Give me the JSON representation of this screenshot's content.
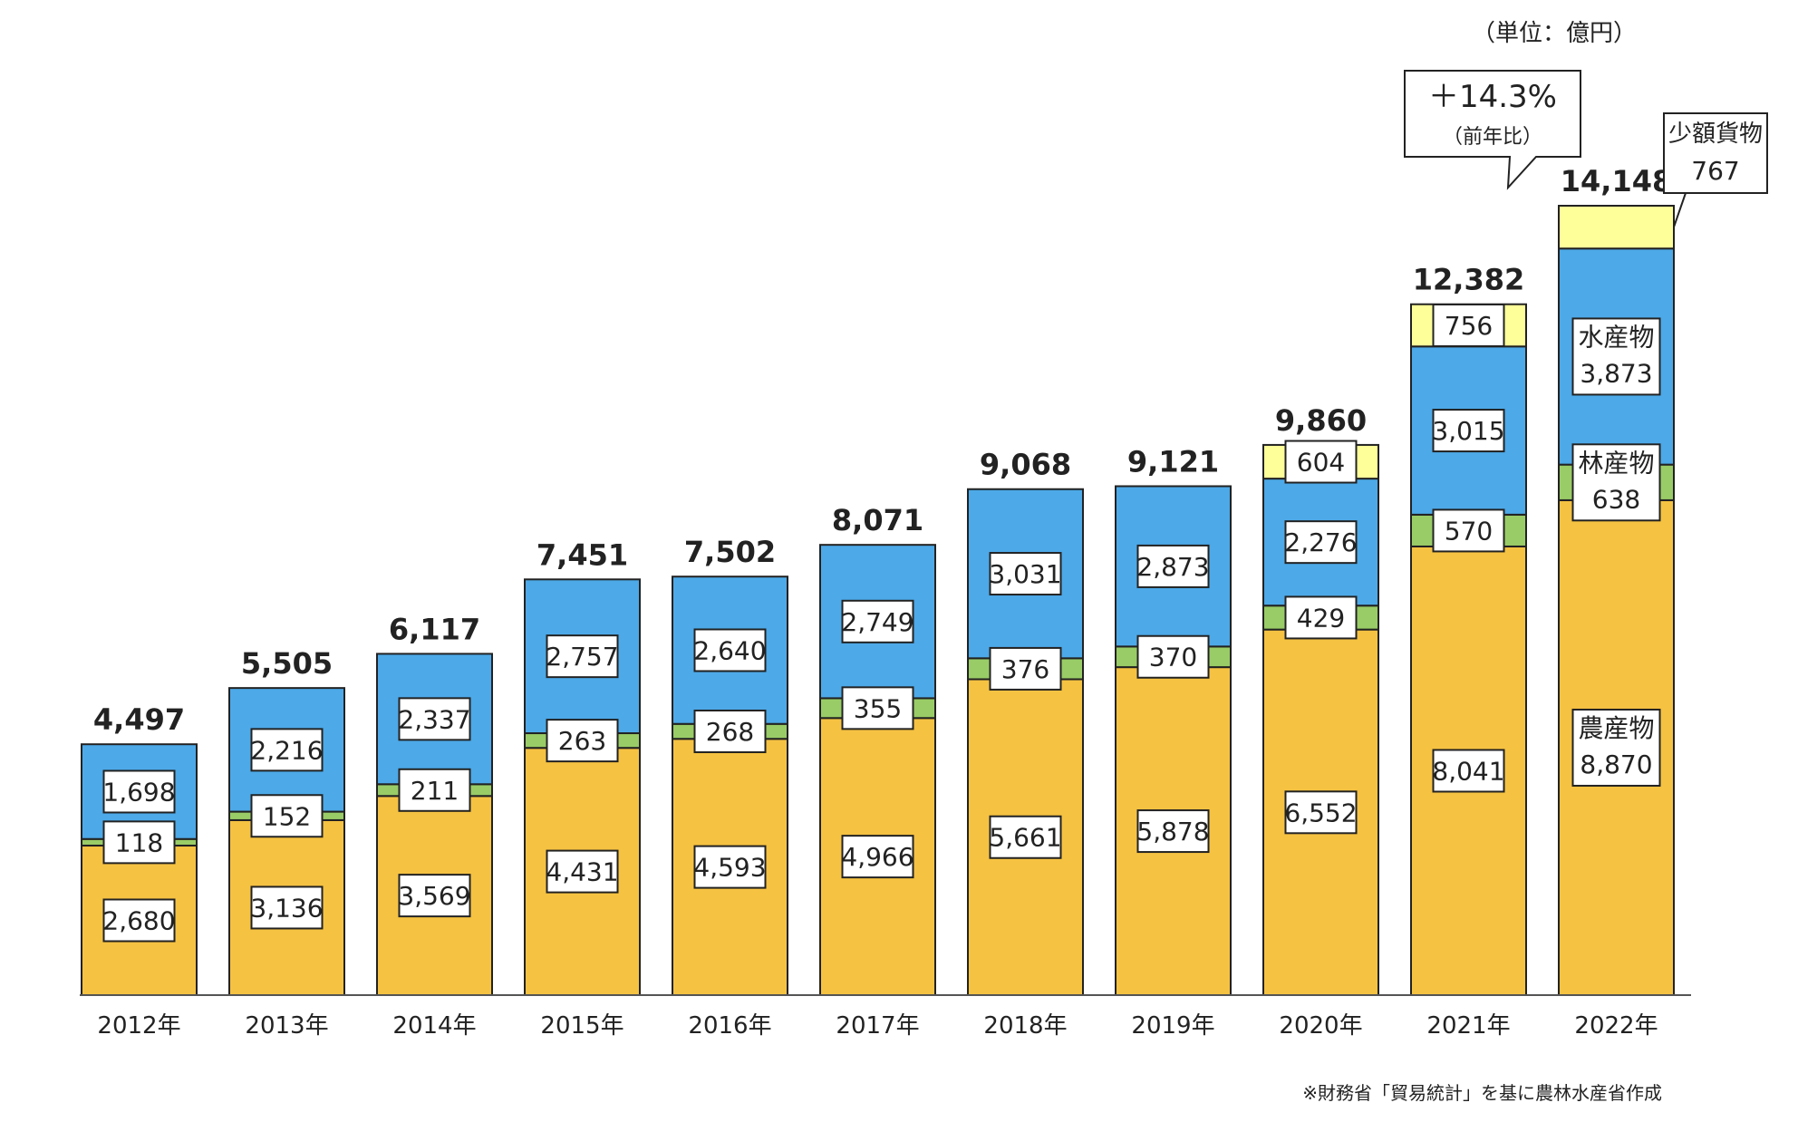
{
  "unit_label": "（単位：億円）",
  "source_note": "※財務省「貿易統計」を基に農林水産省作成",
  "callout": {
    "change": "＋14.3%",
    "basis": "（前年比）"
  },
  "chart_data": {
    "type": "bar",
    "stacked": true,
    "title": "",
    "xlabel": "",
    "ylabel": "",
    "ylim": [
      0,
      14148
    ],
    "categories": [
      "2012年",
      "2013年",
      "2014年",
      "2015年",
      "2016年",
      "2017年",
      "2018年",
      "2019年",
      "2020年",
      "2021年",
      "2022年"
    ],
    "totals": [
      4497,
      5505,
      6117,
      7451,
      7502,
      8071,
      9068,
      9121,
      9860,
      12382,
      14148
    ],
    "totals_labels": [
      "4,497",
      "5,505",
      "6,117",
      "7,451",
      "7,502",
      "8,071",
      "9,068",
      "9,121",
      "9,860",
      "12,382",
      "14,148"
    ],
    "series": [
      {
        "name": "農産物",
        "color": "#F5C242",
        "values": [
          2680,
          3136,
          3569,
          4431,
          4593,
          4966,
          5661,
          5878,
          6552,
          8041,
          8870
        ],
        "labels": [
          "2,680",
          "3,136",
          "3,569",
          "4,431",
          "4,593",
          "4,966",
          "5,661",
          "5,878",
          "6,552",
          "8,041",
          "8,870"
        ]
      },
      {
        "name": "林産物",
        "color": "#99CC66",
        "values": [
          118,
          152,
          211,
          263,
          268,
          355,
          376,
          370,
          429,
          570,
          638
        ],
        "labels": [
          "118",
          "152",
          "211",
          "263",
          "268",
          "355",
          "376",
          "370",
          "429",
          "570",
          "638"
        ]
      },
      {
        "name": "水産物",
        "color": "#4DA9E8",
        "values": [
          1698,
          2216,
          2337,
          2757,
          2640,
          2749,
          3031,
          2873,
          2276,
          3015,
          3873
        ],
        "labels": [
          "1,698",
          "2,216",
          "2,337",
          "2,757",
          "2,640",
          "2,749",
          "3,031",
          "2,873",
          "2,276",
          "3,015",
          "3,873"
        ]
      },
      {
        "name": "少額貨物",
        "color": "#FFFF99",
        "values": [
          0,
          0,
          0,
          0,
          0,
          0,
          0,
          0,
          604,
          756,
          767
        ],
        "labels": [
          "",
          "",
          "",
          "",
          "",
          "",
          "",
          "",
          "604",
          "756",
          "767"
        ]
      }
    ],
    "grid": false,
    "legend": "inline labels on 2022年 bar"
  }
}
